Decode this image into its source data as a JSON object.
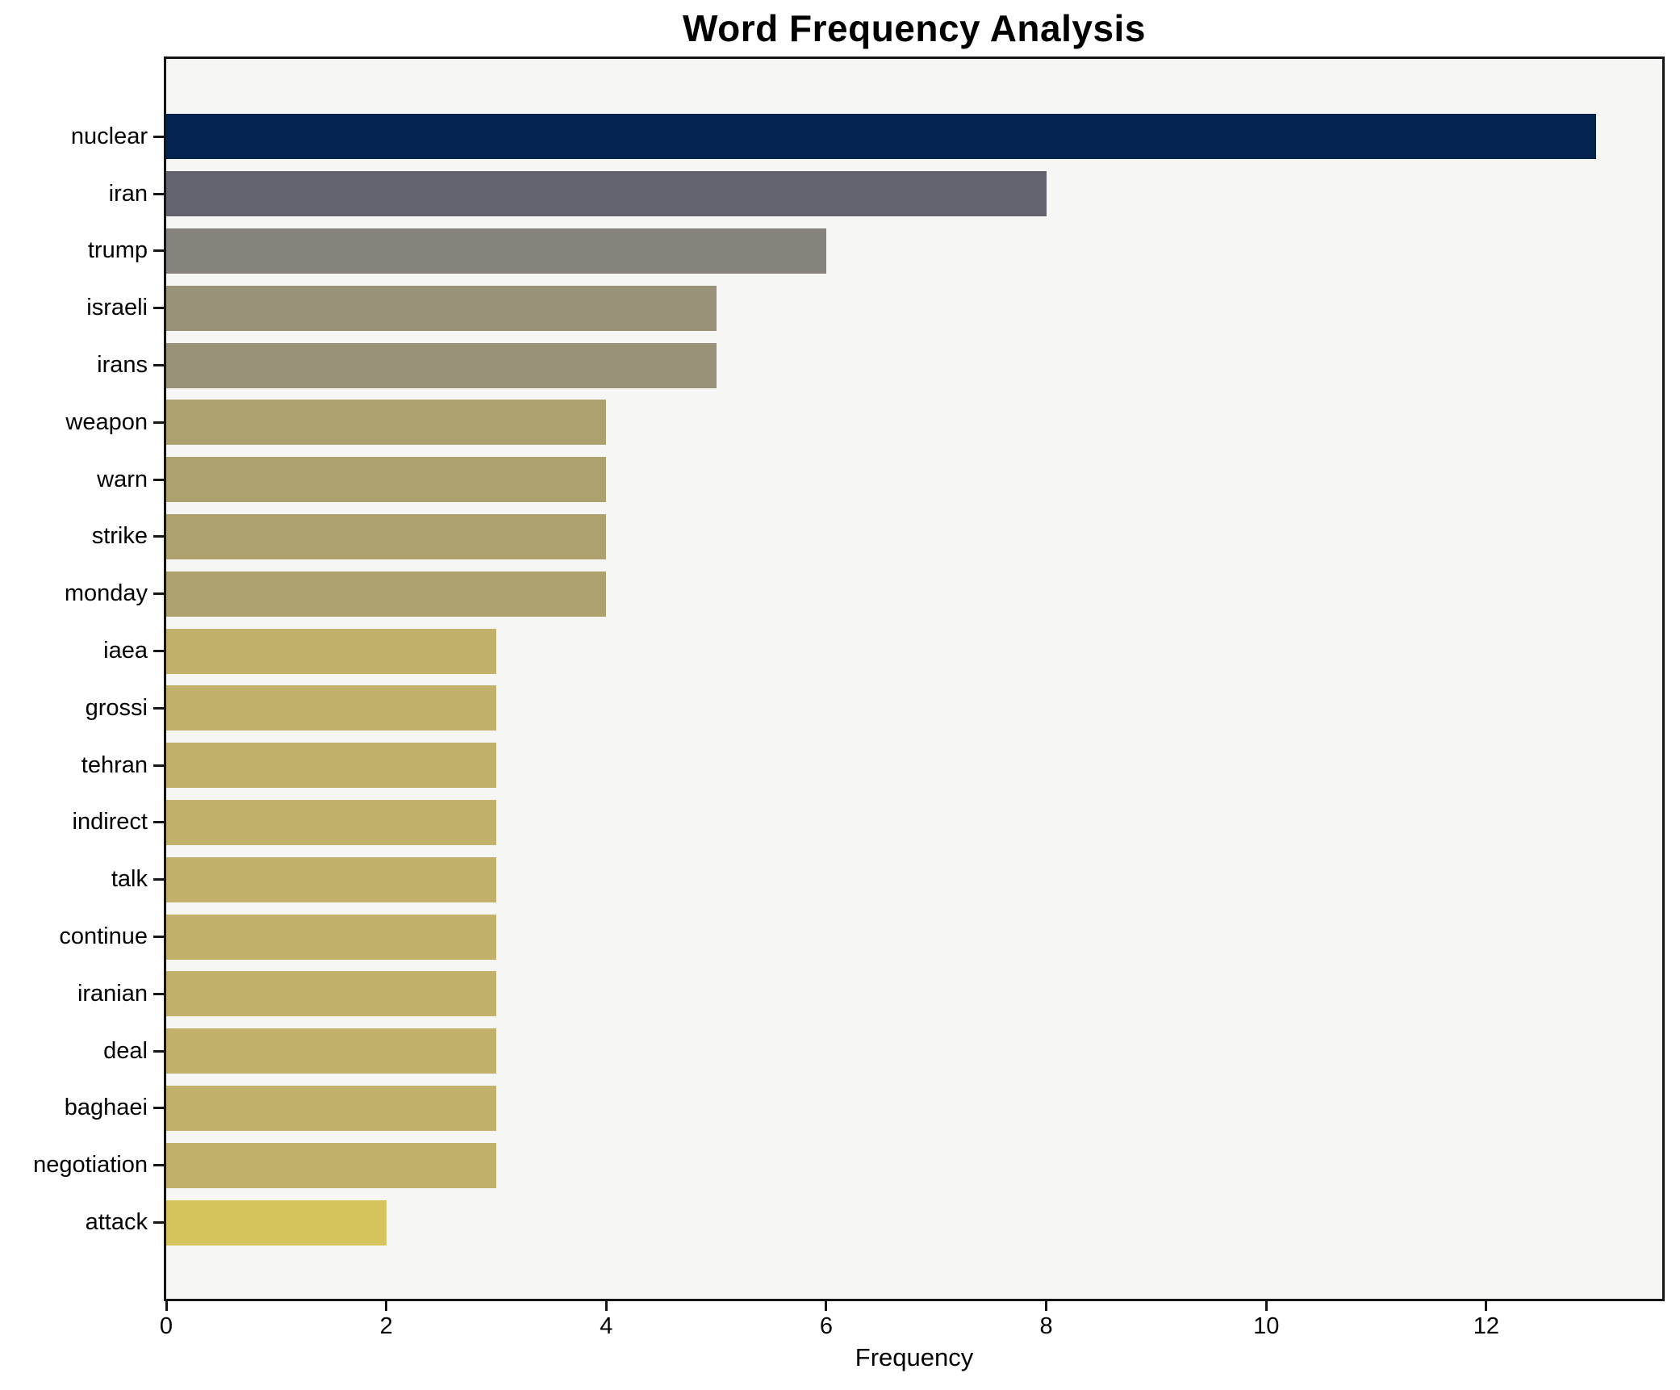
{
  "title": "Word Frequency Analysis",
  "chart_data": {
    "type": "bar",
    "orientation": "horizontal",
    "title": "Word Frequency Analysis",
    "xlabel": "Frequency",
    "ylabel": "",
    "categories": [
      "nuclear",
      "iran",
      "trump",
      "israeli",
      "irans",
      "weapon",
      "warn",
      "strike",
      "monday",
      "iaea",
      "grossi",
      "tehran",
      "indirect",
      "talk",
      "continue",
      "iranian",
      "deal",
      "baghaei",
      "negotiation",
      "attack"
    ],
    "values": [
      13,
      8,
      6,
      5,
      5,
      4,
      4,
      4,
      4,
      3,
      3,
      3,
      3,
      3,
      3,
      3,
      3,
      3,
      3,
      2
    ],
    "bar_colors": [
      "#04234e",
      "#636470",
      "#85837b",
      "#999278",
      "#999278",
      "#ada26e",
      "#ada26e",
      "#ada26e",
      "#ada26e",
      "#c1b16a",
      "#c1b16a",
      "#c1b16a",
      "#c1b16a",
      "#c1b16a",
      "#c1b16a",
      "#c1b16a",
      "#c1b16a",
      "#c1b16a",
      "#c1b16a",
      "#d5c35c"
    ],
    "xlim": [
      0,
      13.6
    ],
    "x_ticks": [
      0,
      2,
      4,
      6,
      8,
      10,
      12
    ],
    "grid": false,
    "legend_position": "none",
    "plot_bg": "#f6f6f5",
    "figure_bg": "#ffffff",
    "spine_color": "#151515"
  }
}
